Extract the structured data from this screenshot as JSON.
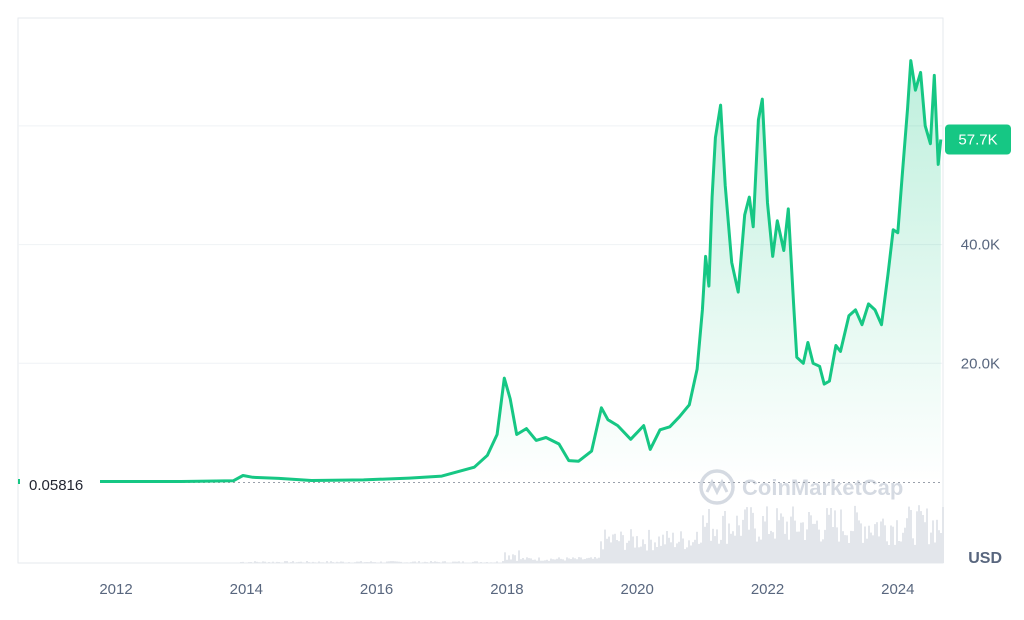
{
  "watermark": "CoinMarketCap",
  "currency_label": "USD",
  "current_price_label": "57.7K",
  "start_price_label": "0.05816",
  "colors": {
    "line": "#16c784",
    "area_top": "#16c784",
    "grid": "#eff2f5",
    "volume": "#e3e6eb",
    "badge_bg": "#16c784",
    "baseline": "#9aa0ab",
    "start_marker": "#ea3943"
  },
  "chart_data": {
    "type": "area",
    "ylim": [
      0,
      78000
    ],
    "y_ticks": [
      {
        "value": 20000,
        "label": "20.0K"
      },
      {
        "value": 40000,
        "label": "40.0K"
      }
    ],
    "x_ticks": [
      {
        "value": 2012,
        "label": "2012"
      },
      {
        "value": 2014,
        "label": "2014"
      },
      {
        "value": 2016,
        "label": "2016"
      },
      {
        "value": 2018,
        "label": "2018"
      },
      {
        "value": 2020,
        "label": "2020"
      },
      {
        "value": 2022,
        "label": "2022"
      },
      {
        "value": 2024,
        "label": "2024"
      }
    ],
    "grid": true,
    "series": [
      {
        "points": [
          [
            2010.55,
            0.06
          ],
          [
            2011.5,
            3
          ],
          [
            2012.5,
            10
          ],
          [
            2013.0,
            20
          ],
          [
            2013.8,
            200
          ],
          [
            2013.95,
            1100
          ],
          [
            2014.1,
            800
          ],
          [
            2014.5,
            600
          ],
          [
            2015.0,
            250
          ],
          [
            2015.8,
            350
          ],
          [
            2016.5,
            650
          ],
          [
            2017.0,
            1000
          ],
          [
            2017.5,
            2500
          ],
          [
            2017.7,
            4500
          ],
          [
            2017.85,
            8000
          ],
          [
            2017.96,
            17500
          ],
          [
            2018.05,
            14000
          ],
          [
            2018.15,
            8000
          ],
          [
            2018.3,
            9000
          ],
          [
            2018.45,
            7000
          ],
          [
            2018.6,
            7500
          ],
          [
            2018.8,
            6400
          ],
          [
            2018.95,
            3600
          ],
          [
            2019.1,
            3500
          ],
          [
            2019.3,
            5200
          ],
          [
            2019.45,
            12500
          ],
          [
            2019.55,
            10500
          ],
          [
            2019.7,
            9500
          ],
          [
            2019.9,
            7200
          ],
          [
            2020.1,
            9500
          ],
          [
            2020.2,
            5500
          ],
          [
            2020.35,
            8800
          ],
          [
            2020.5,
            9300
          ],
          [
            2020.65,
            11000
          ],
          [
            2020.8,
            13000
          ],
          [
            2020.92,
            19000
          ],
          [
            2021.0,
            29000
          ],
          [
            2021.05,
            38000
          ],
          [
            2021.1,
            33000
          ],
          [
            2021.15,
            48000
          ],
          [
            2021.2,
            58000
          ],
          [
            2021.28,
            63500
          ],
          [
            2021.35,
            50000
          ],
          [
            2021.45,
            37000
          ],
          [
            2021.55,
            32000
          ],
          [
            2021.65,
            45000
          ],
          [
            2021.72,
            48000
          ],
          [
            2021.78,
            43000
          ],
          [
            2021.86,
            61000
          ],
          [
            2021.92,
            64500
          ],
          [
            2022.0,
            47000
          ],
          [
            2022.08,
            38000
          ],
          [
            2022.15,
            44000
          ],
          [
            2022.25,
            39000
          ],
          [
            2022.32,
            46000
          ],
          [
            2022.4,
            30000
          ],
          [
            2022.45,
            21000
          ],
          [
            2022.55,
            20000
          ],
          [
            2022.62,
            23500
          ],
          [
            2022.7,
            20000
          ],
          [
            2022.8,
            19500
          ],
          [
            2022.87,
            16500
          ],
          [
            2022.95,
            17000
          ],
          [
            2023.05,
            23000
          ],
          [
            2023.12,
            22000
          ],
          [
            2023.25,
            28000
          ],
          [
            2023.35,
            29000
          ],
          [
            2023.45,
            26500
          ],
          [
            2023.55,
            30000
          ],
          [
            2023.65,
            29000
          ],
          [
            2023.75,
            26500
          ],
          [
            2023.85,
            35000
          ],
          [
            2023.93,
            42500
          ],
          [
            2024.0,
            42000
          ],
          [
            2024.07,
            52000
          ],
          [
            2024.15,
            63000
          ],
          [
            2024.2,
            71000
          ],
          [
            2024.27,
            66000
          ],
          [
            2024.35,
            69000
          ],
          [
            2024.42,
            60000
          ],
          [
            2024.5,
            57000
          ],
          [
            2024.56,
            68500
          ],
          [
            2024.62,
            53500
          ],
          [
            2024.66,
            57700
          ]
        ]
      }
    ]
  }
}
